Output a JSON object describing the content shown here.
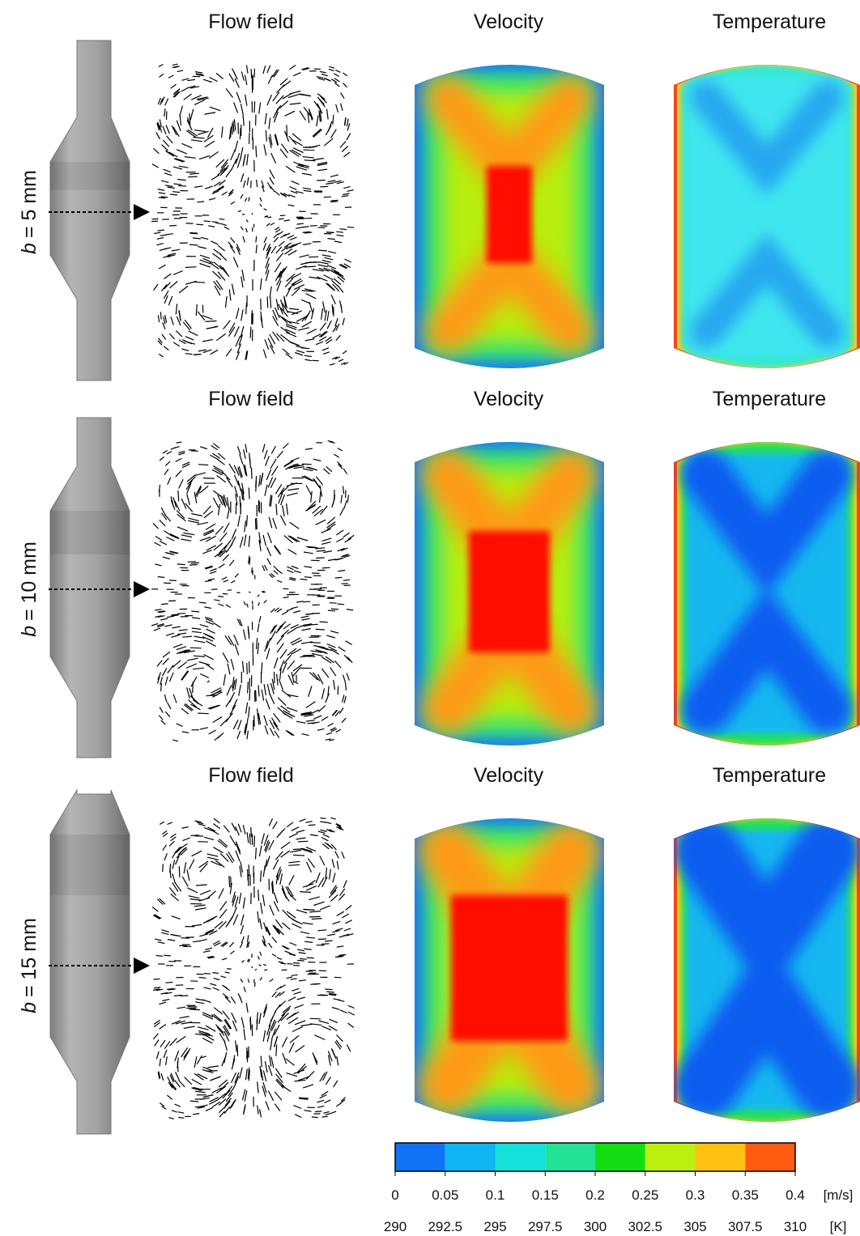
{
  "rows": [
    {
      "var": "b",
      "rest": "= 5 mm",
      "titles": [
        "Flow field",
        "Velocity",
        "Temperature"
      ]
    },
    {
      "var": "b",
      "rest": "= 10 mm",
      "titles": [
        "Flow field",
        "Velocity",
        "Temperature"
      ]
    },
    {
      "var": "b",
      "rest": "= 15 mm",
      "titles": [
        "Flow field",
        "Velocity",
        "Temperature"
      ]
    }
  ],
  "colorbar": {
    "colors": [
      "#1073f5",
      "#10b6f2",
      "#14e2da",
      "#22e296",
      "#12de12",
      "#bcf010",
      "#ffc212",
      "#ff5c12"
    ],
    "velocity_ticks": [
      0,
      0.05,
      0.1,
      0.15,
      0.2,
      0.25,
      0.3,
      0.35,
      0.4
    ],
    "velocity_unit": "[m/s]",
    "temperature_ticks": [
      290,
      292.5,
      295,
      297.5,
      300,
      302.5,
      305,
      307.5,
      310
    ],
    "temperature_unit": "[K]"
  }
}
